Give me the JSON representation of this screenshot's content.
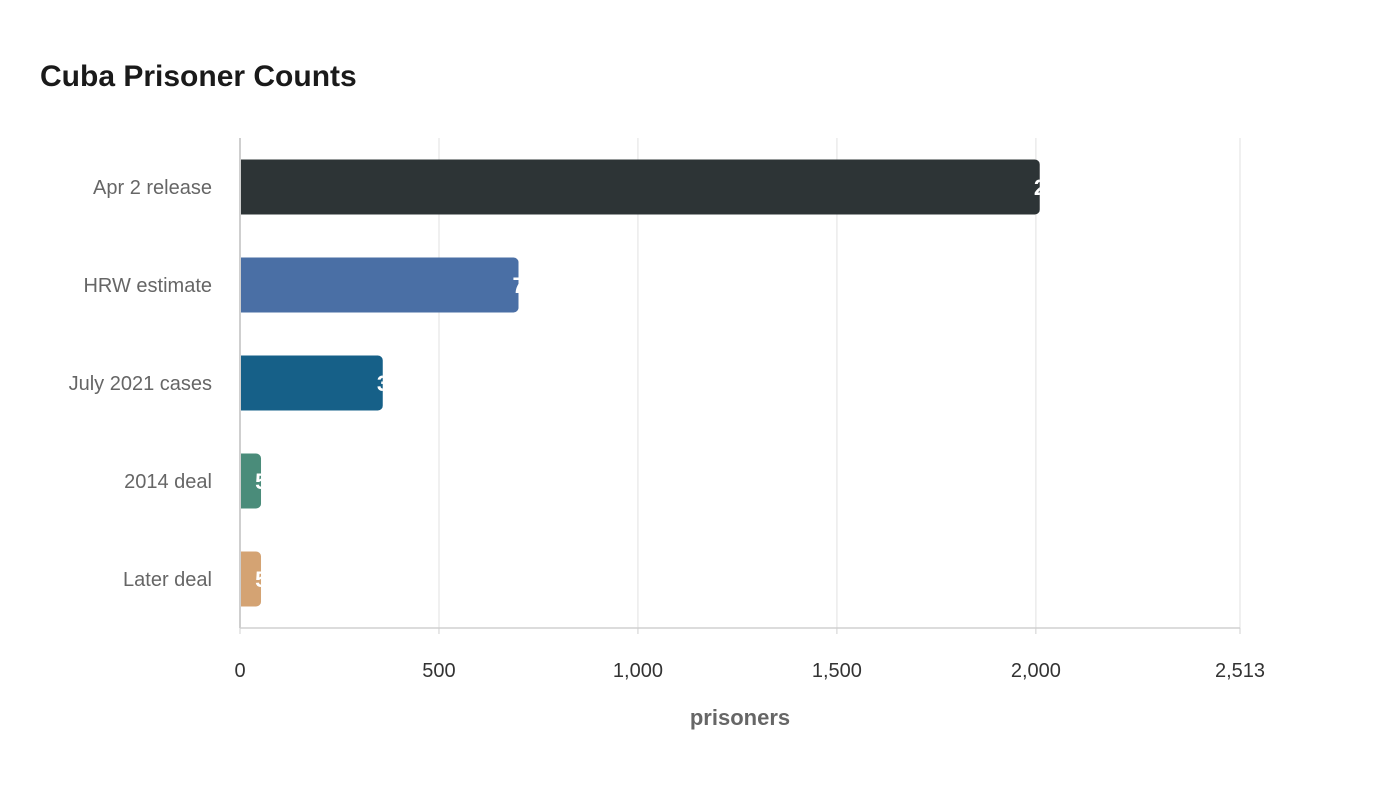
{
  "chart_data": {
    "type": "bar",
    "orientation": "horizontal",
    "title": "Cuba Prisoner Counts",
    "xlabel": "prisoners",
    "ylabel": "",
    "categories": [
      "Apr 2 release",
      "HRW estimate",
      "July 2021 cases",
      "2014 deal",
      "Later deal"
    ],
    "values": [
      2010,
      700,
      359,
      53,
      53
    ],
    "colors": [
      "#2d3436",
      "#4a6fa5",
      "#166088",
      "#4a8c7a",
      "#d4a373"
    ],
    "xlim": [
      0,
      2513
    ],
    "xticks": [
      0,
      500,
      1000,
      1500,
      2000,
      2513
    ],
    "xtick_labels": [
      "0",
      "500",
      "1,000",
      "1,500",
      "2,000",
      "2,513"
    ],
    "grid": true
  }
}
